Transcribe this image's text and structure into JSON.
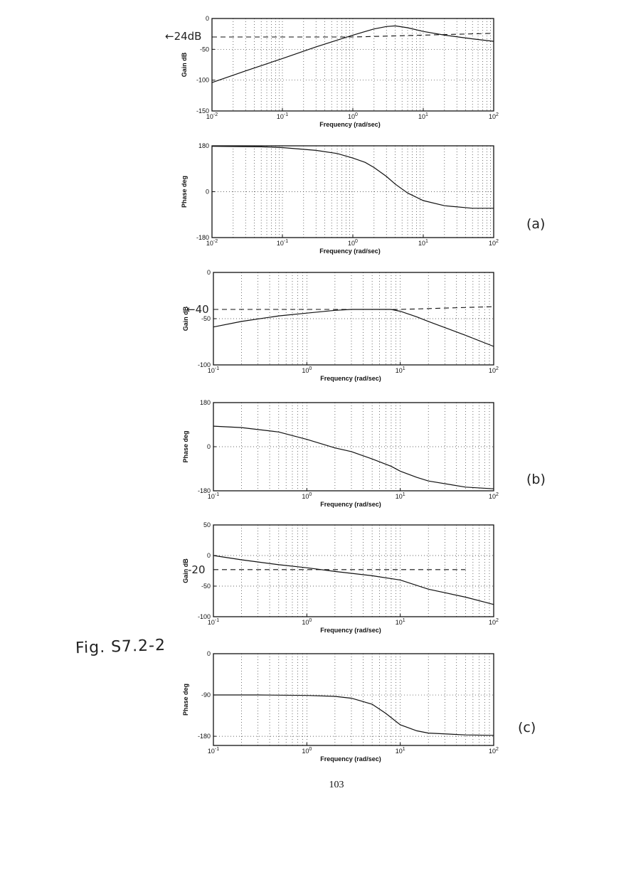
{
  "page": {
    "figure_label": "Fig. S7.2-2",
    "page_number": "103",
    "panel_labels": [
      "(a)",
      "(b)",
      "(c)"
    ]
  },
  "chart_data": [
    {
      "type": "line",
      "panel": "a",
      "xlabel": "Frequency (rad/sec)",
      "ylabel": "Gain dB",
      "xscale": "log",
      "xlim": [
        0.01,
        100
      ],
      "ylim": [
        -150,
        0
      ],
      "xticks": [
        "10^-2",
        "10^-1",
        "10^0",
        "10^1",
        "10^2"
      ],
      "yticks": [
        0,
        -50,
        -100,
        -150
      ],
      "grid": "dotted",
      "series": [
        {
          "style": "solid",
          "x": [
            0.01,
            0.03,
            0.1,
            0.3,
            1,
            2,
            3,
            4,
            6,
            10,
            20,
            50,
            100
          ],
          "y": [
            -104,
            -85,
            -65,
            -46,
            -27,
            -17,
            -13,
            -12,
            -15,
            -21,
            -27,
            -33,
            -37
          ]
        }
      ],
      "reference_lines": [
        {
          "style": "dashed",
          "y": -30,
          "x": [
            0.01,
            1
          ],
          "y_end": -24,
          "x_end": 100
        }
      ],
      "annotations": [
        "←24dB"
      ]
    },
    {
      "type": "line",
      "panel": "a",
      "xlabel": "Frequency (rad/sec)",
      "ylabel": "Phase deg",
      "xscale": "log",
      "xlim": [
        0.01,
        100
      ],
      "ylim": [
        -180,
        180
      ],
      "xticks": [
        "10^-2",
        "10^-1",
        "10^0",
        "10^1",
        "10^2"
      ],
      "yticks": [
        180,
        0,
        -180
      ],
      "grid": "dotted",
      "series": [
        {
          "style": "solid",
          "x": [
            0.01,
            0.05,
            0.1,
            0.3,
            0.6,
            1,
            1.5,
            2,
            3,
            4,
            6,
            10,
            20,
            50,
            100
          ],
          "y": [
            178,
            176,
            173,
            162,
            150,
            132,
            115,
            95,
            60,
            30,
            -5,
            -35,
            -55,
            -65,
            -65
          ]
        }
      ]
    },
    {
      "type": "line",
      "panel": "b",
      "xlabel": "Frequency (rad/sec)",
      "ylabel": "Gain dB",
      "xscale": "log",
      "xlim": [
        0.1,
        100
      ],
      "ylim": [
        -100,
        0
      ],
      "xticks": [
        "10^-1",
        "10^0",
        "10^1",
        "10^2"
      ],
      "yticks": [
        0,
        -50,
        -100
      ],
      "grid": "dotted",
      "series": [
        {
          "style": "solid",
          "x": [
            0.1,
            0.2,
            0.5,
            1,
            2,
            3,
            5,
            8,
            10,
            15,
            20,
            50,
            100
          ],
          "y": [
            -59,
            -53,
            -47,
            -44,
            -41,
            -40,
            -40,
            -40,
            -42,
            -48,
            -53,
            -68,
            -80
          ]
        }
      ],
      "reference_lines": [
        {
          "style": "dashed",
          "y": -40,
          "x": [
            0.1,
            10
          ],
          "y_end": -37,
          "x_end": 100
        }
      ],
      "annotations": [
        "←40"
      ]
    },
    {
      "type": "line",
      "panel": "b",
      "xlabel": "Frequency (rad/sec)",
      "ylabel": "Phase deg",
      "xscale": "log",
      "xlim": [
        0.1,
        100
      ],
      "ylim": [
        -180,
        180
      ],
      "xticks": [
        "10^-1",
        "10^0",
        "10^1",
        "10^2"
      ],
      "yticks": [
        180,
        0,
        -180
      ],
      "grid": "dotted",
      "series": [
        {
          "style": "solid",
          "x": [
            0.1,
            0.2,
            0.5,
            1,
            2,
            3,
            5,
            8,
            10,
            15,
            20,
            50,
            100
          ],
          "y": [
            84,
            78,
            60,
            30,
            -5,
            -20,
            -50,
            -80,
            -100,
            -125,
            -140,
            -165,
            -172
          ]
        }
      ]
    },
    {
      "type": "line",
      "panel": "c",
      "xlabel": "Frequency (rad/sec)",
      "ylabel": "Gain dB",
      "xscale": "log",
      "xlim": [
        0.1,
        100
      ],
      "ylim": [
        -100,
        50
      ],
      "xticks": [
        "10^-1",
        "10^0",
        "10^1",
        "10^2"
      ],
      "yticks": [
        50,
        0,
        -50,
        -100
      ],
      "grid": "dotted",
      "series": [
        {
          "style": "solid",
          "x": [
            0.1,
            0.2,
            0.5,
            1,
            2,
            5,
            10,
            20,
            50,
            100
          ],
          "y": [
            0,
            -7,
            -15,
            -20,
            -26,
            -33,
            -40,
            -55,
            -68,
            -80
          ]
        }
      ],
      "reference_lines": [
        {
          "style": "dashed",
          "y": -23,
          "x": [
            0.1,
            50
          ]
        }
      ],
      "annotations": [
        "-20"
      ]
    },
    {
      "type": "line",
      "panel": "c",
      "xlabel": "Frequency (rad/sec)",
      "ylabel": "Phase deg",
      "xscale": "log",
      "xlim": [
        0.1,
        100
      ],
      "ylim": [
        -200,
        0
      ],
      "xticks": [
        "10^-1",
        "10^0",
        "10^1",
        "10^2"
      ],
      "yticks": [
        0,
        -90,
        -180
      ],
      "grid": "dotted",
      "series": [
        {
          "style": "solid",
          "x": [
            0.1,
            0.3,
            1,
            2,
            3,
            5,
            7,
            10,
            15,
            20,
            50,
            100
          ],
          "y": [
            -90,
            -90,
            -91,
            -93,
            -97,
            -110,
            -130,
            -155,
            -168,
            -173,
            -177,
            -178
          ]
        }
      ]
    }
  ]
}
